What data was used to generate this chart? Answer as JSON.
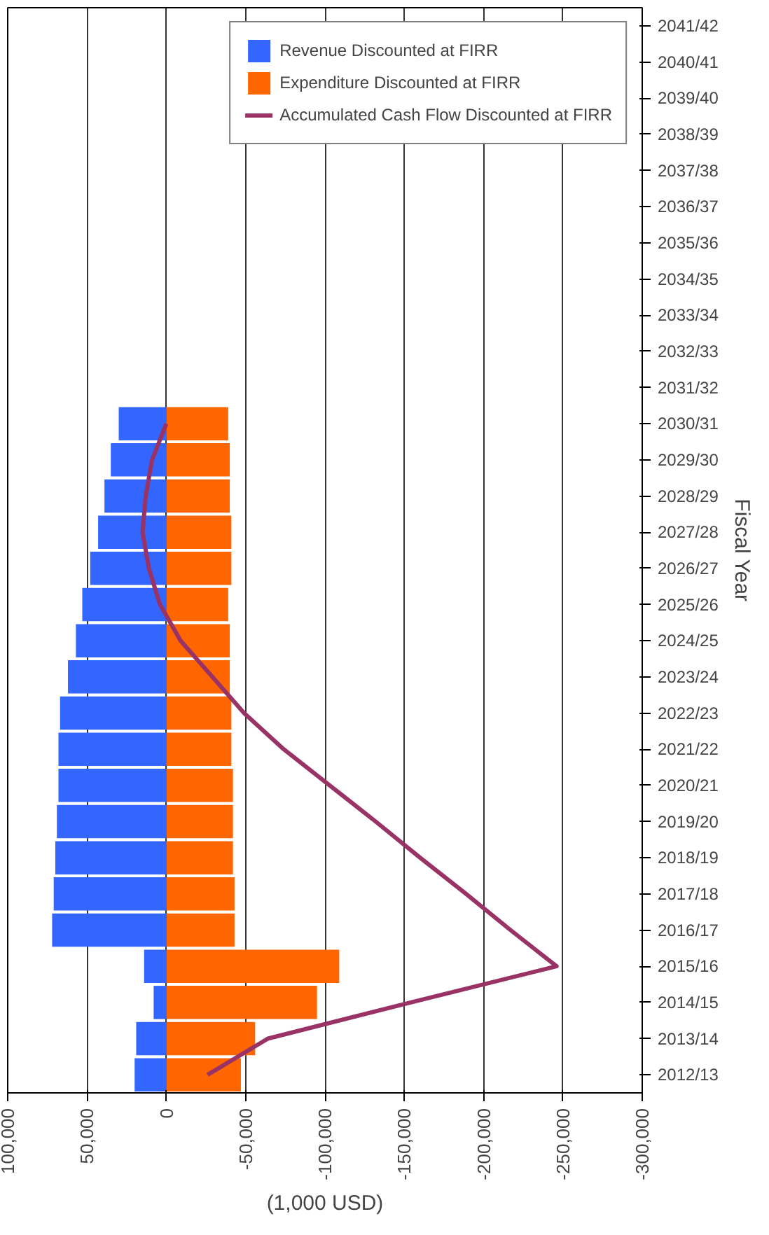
{
  "chart_data": {
    "type": "bar",
    "orientation": "horizontal",
    "xlabel": "(1,000 USD)",
    "ylabel": "Fiscal Year",
    "categories": [
      "2041/42",
      "2040/41",
      "2039/40",
      "2038/39",
      "2037/38",
      "2036/37",
      "2035/36",
      "2034/35",
      "2033/34",
      "2032/33",
      "2031/32",
      "2030/31",
      "2029/30",
      "2028/29",
      "2027/28",
      "2026/27",
      "2025/26",
      "2024/25",
      "2023/24",
      "2022/23",
      "2021/22",
      "2020/21",
      "2019/20",
      "2018/19",
      "2017/18",
      "2016/17",
      "2015/16",
      "2014/15",
      "2013/14",
      "2012/13"
    ],
    "series": [
      {
        "name": "Revenue Discounted at FIRR",
        "color": "#3366ff",
        "values": [
          null,
          null,
          null,
          null,
          null,
          null,
          null,
          null,
          null,
          null,
          null,
          30000,
          35000,
          39000,
          43000,
          48000,
          53000,
          57000,
          62000,
          67000,
          68000,
          68000,
          69000,
          70000,
          71000,
          72000,
          14000,
          8000,
          19000,
          20000
        ]
      },
      {
        "name": "Expenditure Discounted at FIRR",
        "color": "#ff6600",
        "values": [
          null,
          null,
          null,
          null,
          null,
          null,
          null,
          null,
          null,
          null,
          null,
          -39000,
          -40000,
          -40000,
          -41000,
          -41000,
          -39000,
          -40000,
          -40000,
          -41000,
          -41000,
          -42000,
          -42000,
          -42000,
          -43000,
          -43000,
          -109000,
          -95000,
          -56000,
          -47000
        ]
      },
      {
        "name": "Accumulated Cash Flow Discounted at FIRR",
        "type": "line",
        "color": "#993366",
        "values": [
          null,
          null,
          null,
          null,
          null,
          null,
          null,
          null,
          null,
          null,
          null,
          0,
          9000,
          13000,
          15000,
          11000,
          4000,
          -9000,
          -29000,
          -49000,
          -74000,
          -103000,
          -132000,
          -160000,
          -189000,
          -217000,
          -246000,
          -154000,
          -64000,
          -26000
        ]
      }
    ],
    "xlim": [
      100000,
      -300000
    ],
    "xticks": [
      {
        "value": 100000,
        "label": "100,000"
      },
      {
        "value": 50000,
        "label": "50,000"
      },
      0,
      {
        "value": -50000,
        "label": "-50,000"
      },
      {
        "value": -100000,
        "label": "-100,000"
      },
      {
        "value": -150000,
        "label": "-150,000"
      },
      {
        "value": -200000,
        "label": "-200,000"
      },
      {
        "value": -250000,
        "label": "-250,000"
      },
      {
        "value": -300000,
        "label": "-300,000"
      }
    ],
    "stacked": true,
    "grid": "x",
    "legend": "top right",
    "marker": "none",
    "line_style": "solid"
  }
}
